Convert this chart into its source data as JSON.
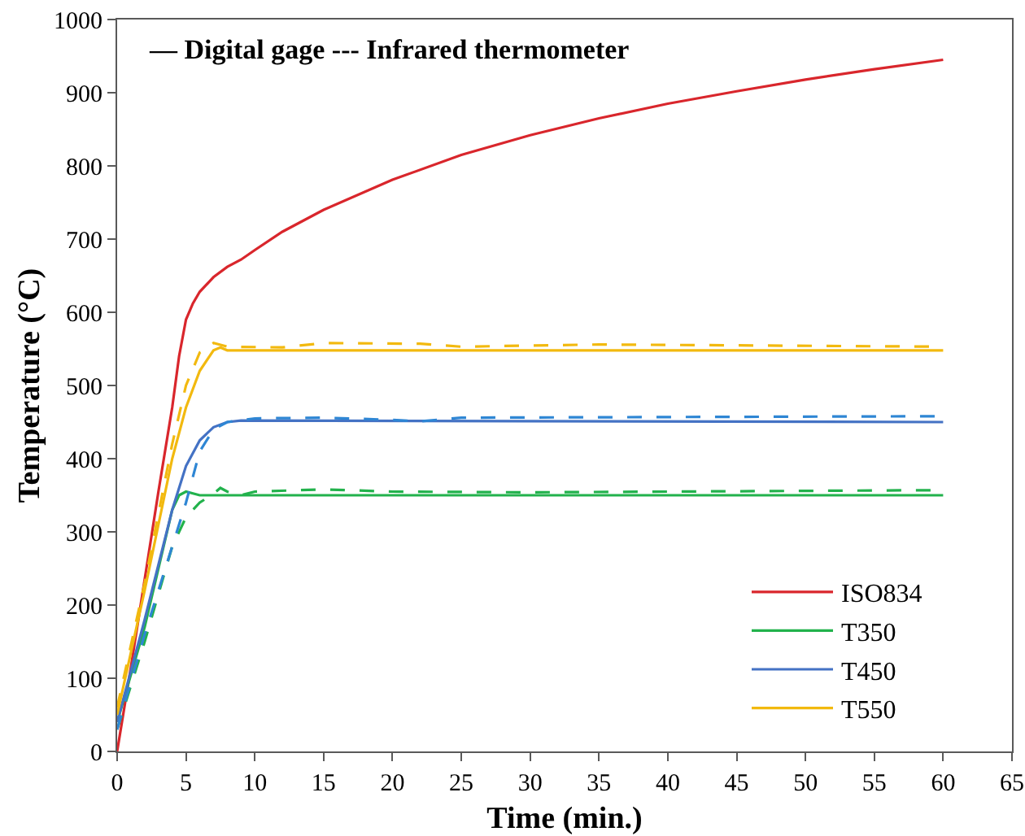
{
  "chart_data": {
    "type": "line",
    "xlabel": "Time (min.)",
    "ylabel": "Temperature (°C)",
    "xlim": [
      0,
      65
    ],
    "xticks": [
      0,
      5,
      10,
      15,
      20,
      25,
      30,
      35,
      40,
      45,
      50,
      55,
      60,
      65
    ],
    "ylim": [
      0,
      1000
    ],
    "yticks": [
      0,
      100,
      200,
      300,
      400,
      500,
      600,
      700,
      800,
      900,
      1000
    ],
    "grid": false,
    "legend": "bottom right",
    "marker": "none",
    "annotations": [
      "— Digital gage --- Infrared thermometer"
    ],
    "series": [
      {
        "name": "ISO834",
        "color": "#d9262c",
        "line_style": "solid",
        "x": [
          0,
          1,
          2,
          3,
          4,
          4.5,
          5,
          5.5,
          6,
          7,
          8,
          9,
          10,
          12,
          15,
          20,
          25,
          30,
          35,
          40,
          45,
          50,
          55,
          60
        ],
        "values": [
          0,
          115,
          235,
          355,
          470,
          540,
          590,
          612,
          628,
          648,
          662,
          672,
          685,
          710,
          740,
          781,
          815,
          842,
          865,
          885,
          902,
          918,
          932,
          945
        ]
      },
      {
        "name": "T350",
        "color": "#22b24c",
        "line_style": "solid",
        "x": [
          0,
          2,
          4,
          4.5,
          5,
          6,
          60
        ],
        "values": [
          40,
          170,
          330,
          350,
          355,
          350,
          350
        ]
      },
      {
        "name": "T450",
        "color": "#4472c4",
        "line_style": "solid",
        "x": [
          0,
          2,
          4,
          5,
          6,
          7,
          8,
          9,
          60
        ],
        "values": [
          40,
          180,
          330,
          390,
          425,
          443,
          450,
          452,
          450
        ]
      },
      {
        "name": "T550",
        "color": "#f2b90f",
        "line_style": "solid",
        "x": [
          0,
          2,
          4,
          5,
          6,
          7,
          7.5,
          8,
          60
        ],
        "values": [
          50,
          220,
          400,
          470,
          520,
          548,
          552,
          548,
          548
        ]
      },
      {
        "color": "#22b24c",
        "line_style": "dashed",
        "x": [
          0,
          2,
          4,
          5,
          6,
          7,
          7.5,
          8,
          9,
          10,
          15,
          20,
          30,
          60
        ],
        "values": [
          30,
          150,
          280,
          320,
          340,
          352,
          360,
          355,
          350,
          355,
          358,
          355,
          354,
          357
        ]
      },
      {
        "color": "#2e86d4",
        "line_style": "dashed",
        "x": [
          0,
          2,
          4,
          5,
          6,
          7,
          8,
          10,
          15,
          20,
          22,
          25,
          60
        ],
        "values": [
          30,
          160,
          280,
          340,
          410,
          440,
          450,
          455,
          456,
          453,
          451,
          456,
          458
        ]
      },
      {
        "color": "#f2b90f",
        "line_style": "dashed",
        "x": [
          0,
          2,
          4,
          5,
          6,
          7,
          8,
          12,
          15,
          22,
          25,
          35,
          60
        ],
        "values": [
          60,
          230,
          420,
          500,
          545,
          558,
          553,
          552,
          558,
          557,
          553,
          556,
          553
        ]
      }
    ]
  }
}
